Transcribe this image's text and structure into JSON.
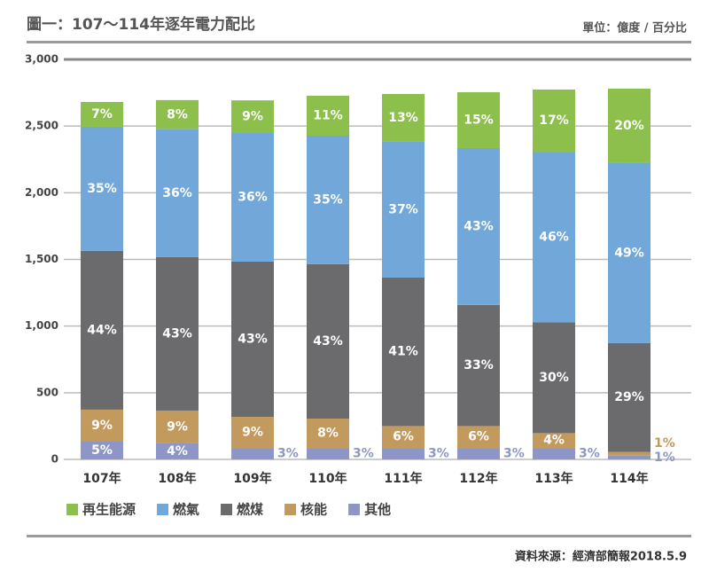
{
  "chart_data": {
    "type": "stacked_bar",
    "title": "圖一：107～114年逐年電力配比",
    "unit_note": "單位：億度 / 百分比",
    "source": "資料來源：經濟部簡報2018.5.9",
    "categories": [
      "107年",
      "108年",
      "109年",
      "110年",
      "111年",
      "112年",
      "113年",
      "114年"
    ],
    "series": [
      {
        "name": "再生能源",
        "color": "#8cbf4c",
        "values": [
          186,
          220,
          245,
          300,
          359,
          419,
          469,
          559
        ],
        "share_labels": [
          "7%",
          "8%",
          "9%",
          "11%",
          "13%",
          "15%",
          "17%",
          "20%"
        ]
      },
      {
        "name": "燃氣",
        "color": "#72a8d9",
        "values": [
          931,
          958,
          964,
          964,
          1018,
          1176,
          1276,
          1350
        ],
        "share_labels": [
          "35%",
          "36%",
          "36%",
          "35%",
          "37%",
          "43%",
          "46%",
          "49%"
        ]
      },
      {
        "name": "燃煤",
        "color": "#6b6b6d",
        "values": [
          1191,
          1151,
          1165,
          1158,
          1114,
          909,
          832,
          816
        ],
        "share_labels": [
          "44%",
          "43%",
          "43%",
          "43%",
          "41%",
          "33%",
          "30%",
          "29%"
        ]
      },
      {
        "name": "核能",
        "color": "#c39a5e",
        "values": [
          240,
          246,
          233,
          220,
          164,
          164,
          111,
          28
        ],
        "share_labels": [
          "9%",
          "9%",
          "9%",
          "8%",
          "6%",
          "6%",
          "4%",
          "1%"
        ]
      },
      {
        "name": "其他",
        "color": "#8e96c8",
        "values": [
          133,
          120,
          86,
          86,
          86,
          86,
          86,
          28
        ],
        "share_labels": [
          "5%",
          "4%",
          "3%",
          "3%",
          "3%",
          "3%",
          "3%",
          "1%"
        ]
      }
    ],
    "ylim": [
      0,
      3000
    ],
    "yticks": [
      0,
      500,
      {
        "value": 1000,
        "label": "1,000"
      },
      {
        "value": 1500,
        "label": "1,500"
      },
      {
        "value": 2000,
        "label": "2,000"
      },
      {
        "value": 2500,
        "label": "2,500"
      },
      {
        "value": 3000,
        "label": "3,000"
      }
    ],
    "grid": true
  }
}
